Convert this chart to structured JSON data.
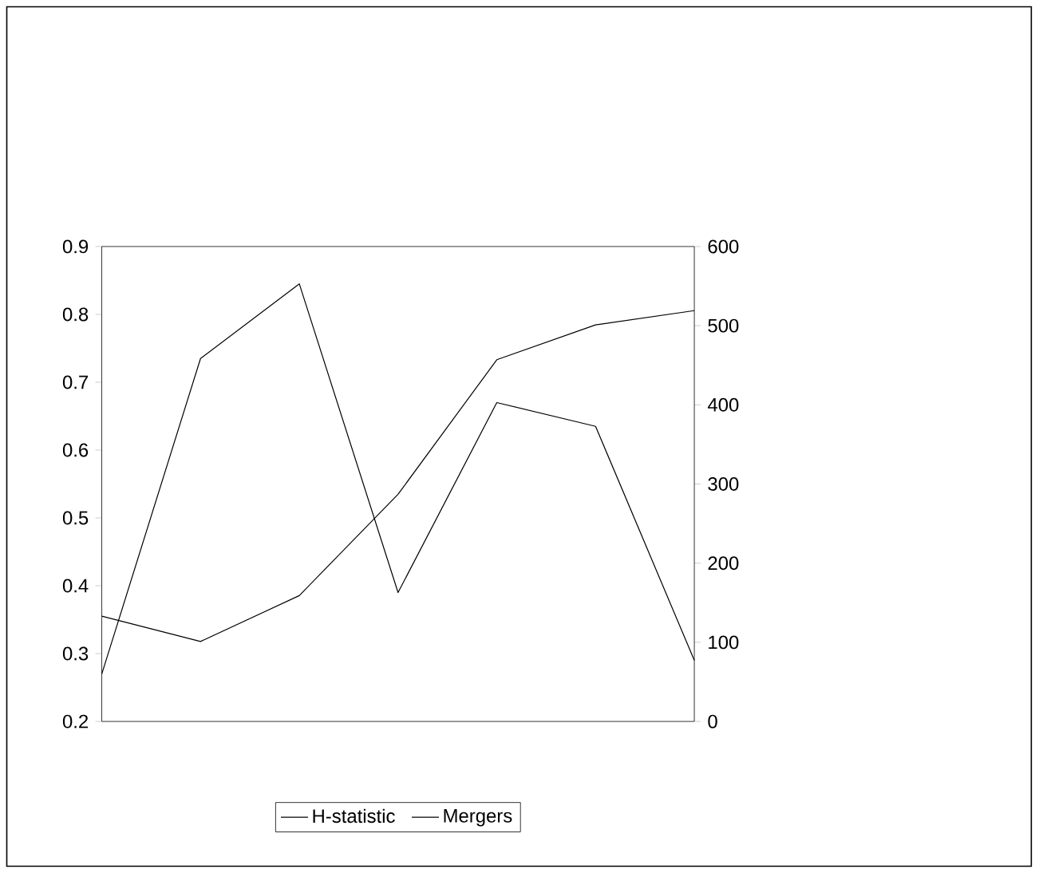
{
  "chart_data": {
    "type": "line",
    "categories": [
      null,
      null,
      null,
      null,
      null,
      null,
      null
    ],
    "series": [
      {
        "name": "H-statistic",
        "color": "#000000",
        "values": [
          0.27,
          0.735,
          0.845,
          0.39,
          0.67,
          0.635,
          0.29
        ]
      },
      {
        "name": "Mergers",
        "color": "#000000",
        "axis": "y2",
        "values": [
          133,
          101,
          159,
          287,
          457,
          501,
          519
        ]
      }
    ],
    "ylim": [
      0.2,
      0.9
    ],
    "yticks": [
      0.2,
      0.3,
      0.4,
      0.5,
      0.6,
      0.7,
      0.8,
      0.9
    ],
    "y2lim": [
      0,
      600
    ],
    "y2ticks": [
      0,
      100,
      200,
      300,
      400,
      500,
      600
    ],
    "legend": "bottom",
    "grid": false,
    "marker": "none",
    "line_style": "solid"
  }
}
